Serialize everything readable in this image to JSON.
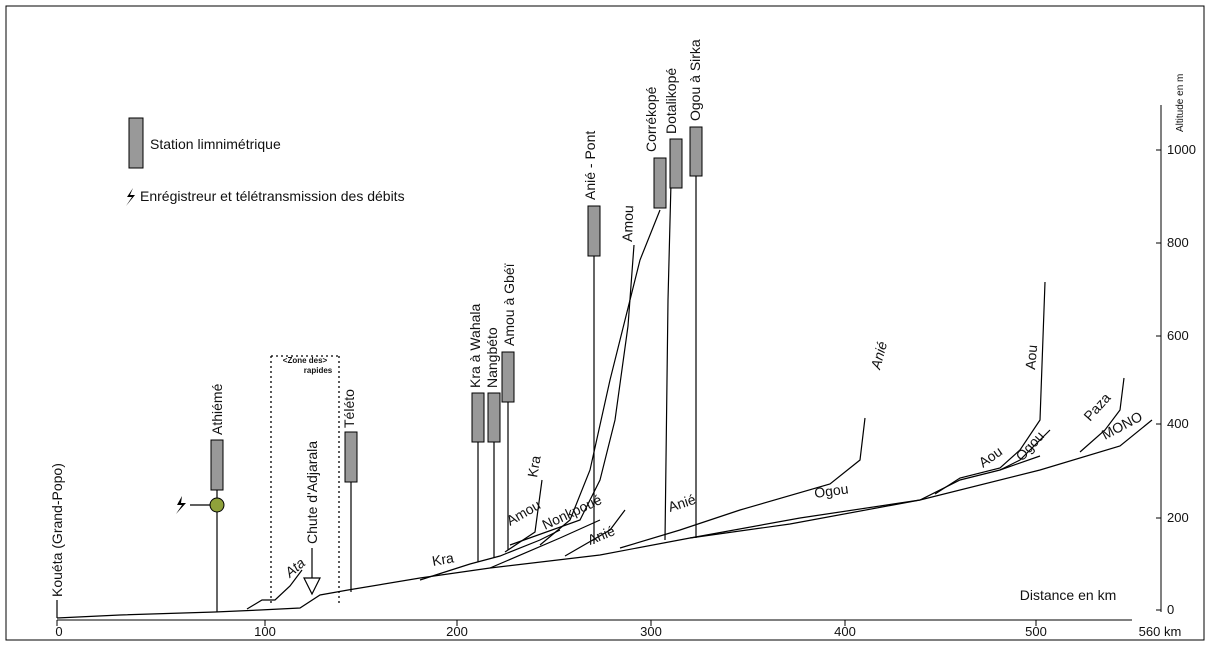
{
  "axis": {
    "x_ticks": [
      "0",
      "100",
      "200",
      "300",
      "400",
      "500"
    ],
    "x_end_label": "560 km",
    "x_title": "Distance en km",
    "y_ticks": [
      "0",
      "200",
      "400",
      "600",
      "800",
      "1000"
    ],
    "y_title": "Altitude en m"
  },
  "legend": {
    "station_label": "Station limnimétrique",
    "recorder_label": "Enrégistreur et télétransmission des débits"
  },
  "zone": {
    "line1": "<Zone des>",
    "line2": "rapides"
  },
  "stations": {
    "koueta": "Kouéta (Grand-Popo)",
    "athieme": "Athiémé",
    "chute": "Chute d'Adjarala",
    "teleto": "Téléto",
    "kra_wahala": "Kra à Wahala",
    "nangbeto": "Nangbéto",
    "amou_gbei": "Amou à Gbéï",
    "anie_pont": "Anié - Pont",
    "correkope": "Corrékopé",
    "dotalikope": "Dotalikopé",
    "ogou_sirka": "Ogou à Sirka"
  },
  "rivers": {
    "ata": "Ata",
    "kra1": "Kra",
    "amou1": "Amou",
    "kra2": "Kra",
    "nonkpoue": "Nonkpoué",
    "anie1": "Anié",
    "anie2": "Anié",
    "amou2": "Amou",
    "anie3": "Anié",
    "ogou1": "Ogou",
    "aou1": "Aou",
    "aou2": "Aou",
    "ogou2": "Ogou",
    "paza": "Paza",
    "mono": "MONO"
  }
}
